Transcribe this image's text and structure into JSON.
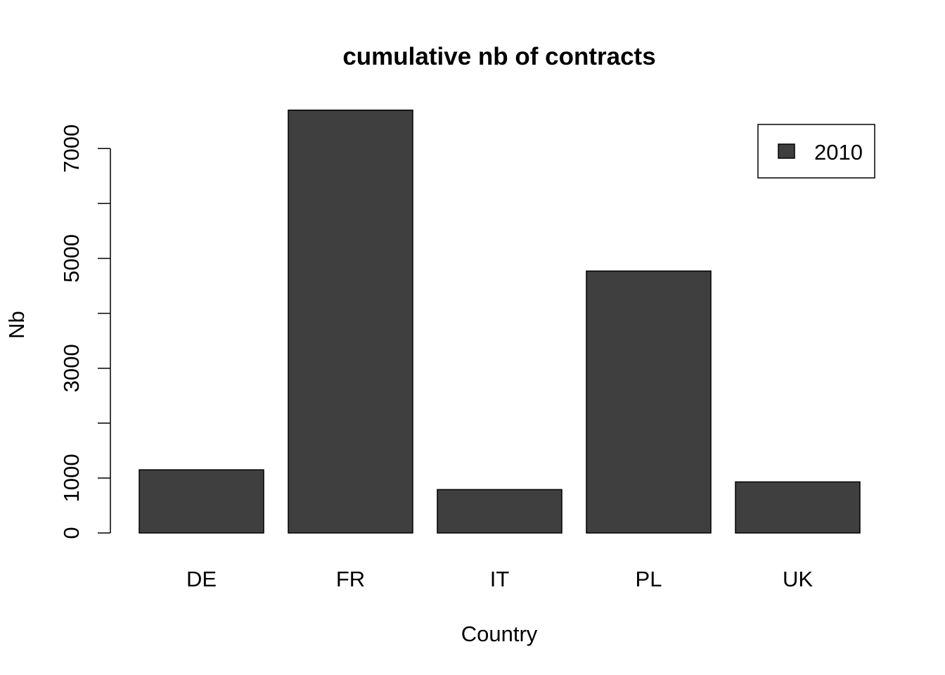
{
  "chart_data": {
    "type": "bar",
    "title": "cumulative nb of contracts",
    "xlabel": "Country",
    "ylabel": "Nb",
    "categories": [
      "DE",
      "FR",
      "IT",
      "PL",
      "UK"
    ],
    "series": [
      {
        "name": "2010",
        "values": [
          1150,
          7700,
          790,
          4770,
          930
        ],
        "color": "#3f3f3f"
      }
    ],
    "ylim": [
      0,
      7700
    ],
    "yticks": [
      0,
      1000,
      2000,
      3000,
      4000,
      5000,
      6000,
      7000
    ],
    "ytick_labels": [
      "0",
      "1000",
      "",
      "3000",
      "",
      "5000",
      "",
      "7000"
    ],
    "grid": false,
    "legend_position": "top-right"
  }
}
